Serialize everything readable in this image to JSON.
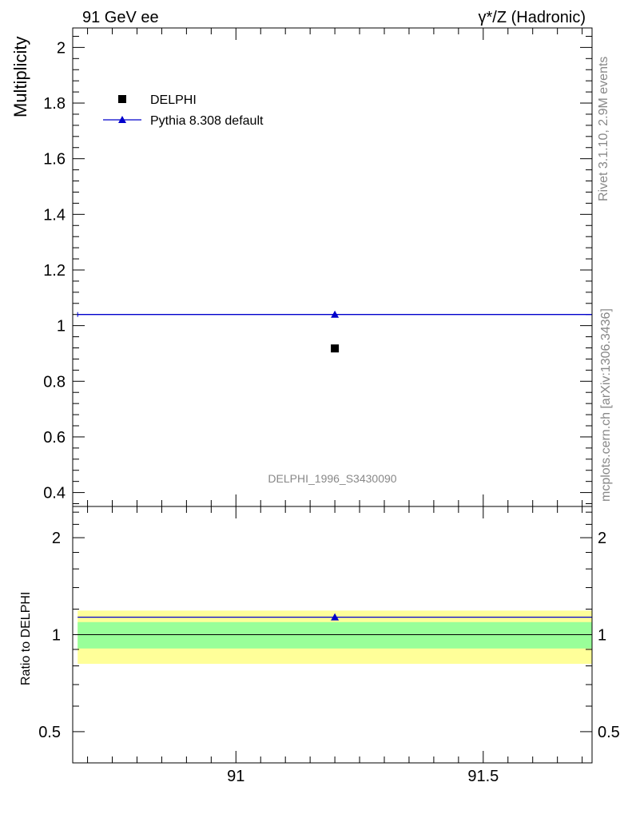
{
  "header": {
    "left": "91 GeV ee",
    "right": "γ*/Z (Hadronic)"
  },
  "side_text": {
    "rivet": "Rivet 3.1.10,  2.9M events",
    "source": "mcplots.cern.ch [arXiv:1306.3436]"
  },
  "analysis_id": "DELPHI_1996_S3430090",
  "colors": {
    "data": "#000000",
    "mc": "#0000cc",
    "band_inner": "#99ff99",
    "band_outer": "#ffff99"
  },
  "chart_data": [
    {
      "type": "scatter",
      "panel": "main",
      "ylabel": "Multiplicity",
      "xlim": [
        90.67,
        91.72
      ],
      "ylim": [
        0.35,
        2.07
      ],
      "yticks": [
        0.4,
        0.6,
        0.8,
        1,
        1.2,
        1.4,
        1.6,
        1.8,
        2
      ],
      "ytick_labels": [
        "0.4",
        "0.6",
        "0.8",
        "1",
        "1.2",
        "1.4",
        "1.6",
        "1.8",
        "2"
      ],
      "legend_position": "top-left",
      "series": [
        {
          "name": "DELPHI",
          "marker": "square",
          "x": [
            91.2
          ],
          "y": [
            0.918
          ]
        },
        {
          "name": "Pythia 8.308 default",
          "marker": "triangle",
          "line": true,
          "x": [
            91.2
          ],
          "y": [
            1.04
          ],
          "xerr": [
            [
              90.68,
              91.72
            ]
          ]
        }
      ]
    },
    {
      "type": "scatter",
      "panel": "ratio",
      "ylabel": "Ratio to DELPHI",
      "scale": "log",
      "xlim": [
        90.67,
        91.72
      ],
      "ylim": [
        0.4,
        2.5
      ],
      "xticks": [
        91,
        91.5
      ],
      "xtick_labels": [
        "91",
        "91.5"
      ],
      "yticks": [
        0.5,
        1,
        2
      ],
      "ytick_labels": [
        "0.5",
        "1",
        "2"
      ],
      "bands": {
        "inner": [
          0.906,
          1.094
        ],
        "outer": [
          0.812,
          1.188
        ]
      },
      "series": [
        {
          "name": "Pythia 8.308 default",
          "marker": "triangle",
          "line": true,
          "x": [
            91.2
          ],
          "y": [
            1.133
          ],
          "xerr": [
            [
              90.68,
              91.72
            ]
          ]
        }
      ]
    }
  ]
}
